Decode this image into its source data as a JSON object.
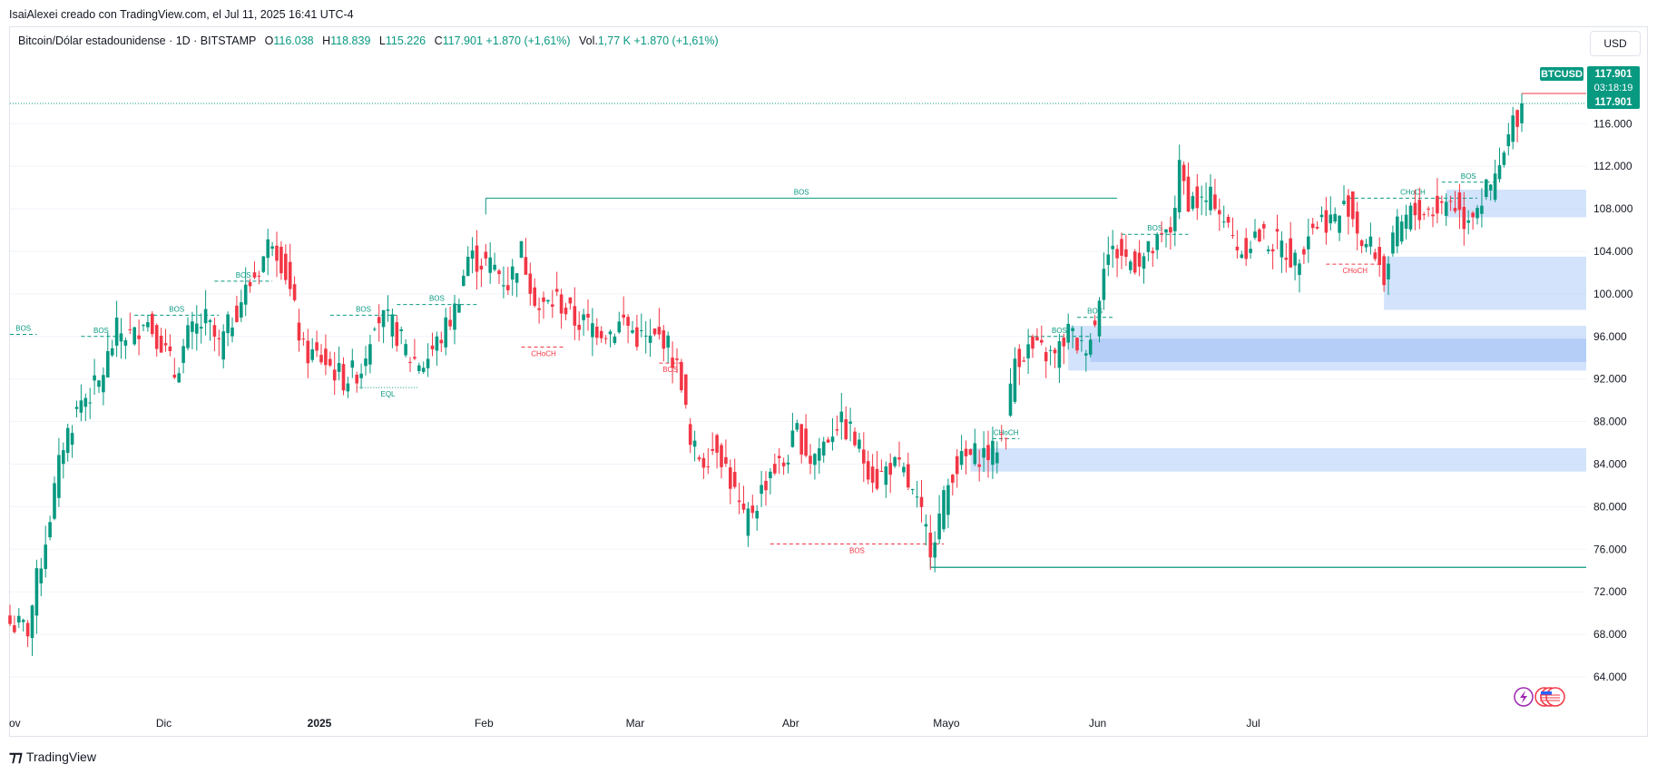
{
  "caption": "IsaiAlexei creado con TradingView.com, el Jul 11, 2025 16:41 UTC-4",
  "legend": {
    "symbol": "Bitcoin/Dólar estadounidense · 1D · BITSTAMP",
    "o_label": "O",
    "o": "116.038",
    "h_label": "H",
    "h": "118.839",
    "l_label": "L",
    "l": "115.226",
    "c_label": "C",
    "c": "117.901",
    "change": "+1.870 (+1,61%)",
    "vol_label": "Vol.",
    "vol": "1,77 K",
    "vol_change": "+1.870 (+1,61%)"
  },
  "currency_button": "USD",
  "footer_brand": "TradingView",
  "price_tags": {
    "ticker": "BTCUSD",
    "price": "117.901",
    "countdown": "03:18:19",
    "last": "117.901"
  },
  "colors": {
    "up": "#089981",
    "down": "#f23645",
    "zone": "#bbd4fb",
    "zone_dark": "#a6c4f7",
    "grid": "#f0f3fa"
  },
  "chart_data": {
    "type": "candlestick",
    "symbol": "BTCUSD",
    "interval": "1D",
    "ylim": [
      60000,
      120000
    ],
    "y_ticks": [
      64000,
      68000,
      72000,
      76000,
      80000,
      84000,
      88000,
      92000,
      96000,
      100000,
      104000,
      108000,
      112000,
      116000
    ],
    "y_tick_labels": [
      "64.000",
      "68.000",
      "72.000",
      "76.000",
      "80.000",
      "84.000",
      "88.000",
      "92.000",
      "96.000",
      "100.000",
      "104.000",
      "108.000",
      "112.000",
      "116.000"
    ],
    "x_tick_labels": [
      "ov",
      "Dic",
      "2025",
      "Feb",
      "Mar",
      "Abr",
      "Mayo",
      "Jun",
      "Jul"
    ],
    "close_path": [
      [
        0,
        69000
      ],
      [
        4,
        68500
      ],
      [
        6,
        73000
      ],
      [
        8,
        77000
      ],
      [
        12,
        86000
      ],
      [
        16,
        90000
      ],
      [
        20,
        91500
      ],
      [
        24,
        96500
      ],
      [
        28,
        96000
      ],
      [
        30,
        98000
      ],
      [
        34,
        95500
      ],
      [
        37,
        92500
      ],
      [
        40,
        96000
      ],
      [
        44,
        97500
      ],
      [
        47,
        95000
      ],
      [
        52,
        99500
      ],
      [
        56,
        102500
      ],
      [
        59,
        105500
      ],
      [
        62,
        102000
      ],
      [
        66,
        94500
      ],
      [
        70,
        94000
      ],
      [
        75,
        92000
      ],
      [
        79,
        93000
      ],
      [
        82,
        98000
      ],
      [
        86,
        97000
      ],
      [
        90,
        94000
      ],
      [
        93,
        93500
      ],
      [
        97,
        96000
      ],
      [
        100,
        98500
      ],
      [
        103,
        103500
      ],
      [
        106,
        103000
      ],
      [
        109,
        102500
      ],
      [
        112,
        101000
      ],
      [
        115,
        104000
      ],
      [
        119,
        98500
      ],
      [
        123,
        99500
      ],
      [
        127,
        97500
      ],
      [
        131,
        97000
      ],
      [
        135,
        96500
      ],
      [
        138,
        97500
      ],
      [
        141,
        96000
      ],
      [
        144,
        95500
      ],
      [
        147,
        96000
      ],
      [
        151,
        92000
      ],
      [
        153,
        85500
      ],
      [
        156,
        84500
      ],
      [
        159,
        86000
      ],
      [
        162,
        82500
      ],
      [
        165,
        78500
      ],
      [
        168,
        80500
      ],
      [
        171,
        83500
      ],
      [
        174,
        84000
      ],
      [
        177,
        87000
      ],
      [
        180,
        84500
      ],
      [
        183,
        86000
      ],
      [
        186,
        88000
      ],
      [
        189,
        87000
      ],
      [
        192,
        84500
      ],
      [
        195,
        82500
      ],
      [
        198,
        84000
      ],
      [
        201,
        83000
      ],
      [
        204,
        80000
      ],
      [
        207,
        76500
      ],
      [
        209,
        79000
      ],
      [
        212,
        83500
      ],
      [
        215,
        84500
      ],
      [
        218,
        85000
      ],
      [
        221,
        85000
      ],
      [
        224,
        87500
      ],
      [
        226,
        94000
      ],
      [
        229,
        94800
      ],
      [
        232,
        94500
      ],
      [
        235,
        94000
      ],
      [
        238,
        96500
      ],
      [
        241,
        94800
      ],
      [
        244,
        97000
      ],
      [
        246,
        103500
      ],
      [
        249,
        104000
      ],
      [
        252,
        103000
      ],
      [
        255,
        103500
      ],
      [
        258,
        104500
      ],
      [
        261,
        106000
      ],
      [
        263,
        111500
      ],
      [
        265,
        109000
      ],
      [
        268,
        108500
      ],
      [
        271,
        109000
      ],
      [
        274,
        106000
      ],
      [
        277,
        104000
      ],
      [
        280,
        105500
      ],
      [
        283,
        105000
      ],
      [
        286,
        104500
      ],
      [
        289,
        103000
      ],
      [
        292,
        106000
      ],
      [
        295,
        107000
      ],
      [
        298,
        107000
      ],
      [
        301,
        108500
      ],
      [
        304,
        105000
      ],
      [
        307,
        104000
      ],
      [
        309,
        101500
      ],
      [
        312,
        106000
      ],
      [
        315,
        107500
      ],
      [
        318,
        107800
      ],
      [
        321,
        108000
      ],
      [
        324,
        109000
      ],
      [
        327,
        107000
      ],
      [
        330,
        108500
      ],
      [
        332,
        109500
      ],
      [
        334,
        110500
      ],
      [
        336,
        113000
      ],
      [
        338,
        116000
      ],
      [
        340,
        117901
      ]
    ],
    "annotations": [
      {
        "label": "BOS",
        "price": 109000,
        "color": "up",
        "style": "solid",
        "x0": 107,
        "x1": 249
      },
      {
        "label": "BOS",
        "price": 96200,
        "color": "up",
        "style": "dashed",
        "x0": 0,
        "x1": 6
      },
      {
        "label": "BOS",
        "price": 96000,
        "color": "up",
        "style": "dashed",
        "x0": 16,
        "x1": 25
      },
      {
        "label": "BOS",
        "price": 98000,
        "color": "up",
        "style": "dashed",
        "x0": 28,
        "x1": 47
      },
      {
        "label": "BOS",
        "price": 101200,
        "color": "up",
        "style": "dashed",
        "x0": 46,
        "x1": 59
      },
      {
        "label": "BOS",
        "price": 98000,
        "color": "up",
        "style": "dashed",
        "x0": 72,
        "x1": 87
      },
      {
        "label": "BOS",
        "price": 99000,
        "color": "up",
        "style": "dashed",
        "x0": 87,
        "x1": 105
      },
      {
        "label": "EQL",
        "price": 91200,
        "color": "up",
        "style": "dotted",
        "x0": 78,
        "x1": 92
      },
      {
        "label": "CHoCH",
        "price": 95000,
        "color": "down",
        "style": "dashed",
        "x0": 115,
        "x1": 125
      },
      {
        "label": "BOS",
        "price": 93500,
        "color": "down",
        "style": "dashed",
        "x0": 146,
        "x1": 151
      },
      {
        "label": "BOS",
        "price": 76500,
        "color": "down",
        "style": "dashed",
        "x0": 171,
        "x1": 210
      },
      {
        "label": "CHoCH",
        "price": 86400,
        "color": "up",
        "style": "dashed",
        "x0": 221,
        "x1": 227
      },
      {
        "label": "BOS",
        "price": 96000,
        "color": "up",
        "style": "dashed",
        "x0": 229,
        "x1": 243
      },
      {
        "label": "BOS",
        "price": 97800,
        "color": "up",
        "style": "dashed",
        "x0": 240,
        "x1": 248
      },
      {
        "label": "BOS",
        "price": 105600,
        "color": "up",
        "style": "dashed",
        "x0": 250,
        "x1": 265
      },
      {
        "label": "CHoCH",
        "price": 102800,
        "color": "down",
        "style": "dashed",
        "x0": 296,
        "x1": 309
      },
      {
        "label": "CHoCH",
        "price": 109000,
        "color": "up",
        "style": "dashed",
        "x0": 301,
        "x1": 330
      },
      {
        "label": "BOS",
        "price": 110500,
        "color": "up",
        "style": "dashed",
        "x0": 322,
        "x1": 334
      }
    ],
    "zones": [
      {
        "top": 109800,
        "bottom": 107200,
        "x0": 323
      },
      {
        "top": 103500,
        "bottom": 98500,
        "x0": 309
      },
      {
        "top": 97000,
        "bottom": 92800,
        "x0": 238
      },
      {
        "top": 85500,
        "bottom": 83300,
        "x0": 216
      }
    ],
    "support_line": {
      "price": 74300,
      "x0": 207
    }
  }
}
